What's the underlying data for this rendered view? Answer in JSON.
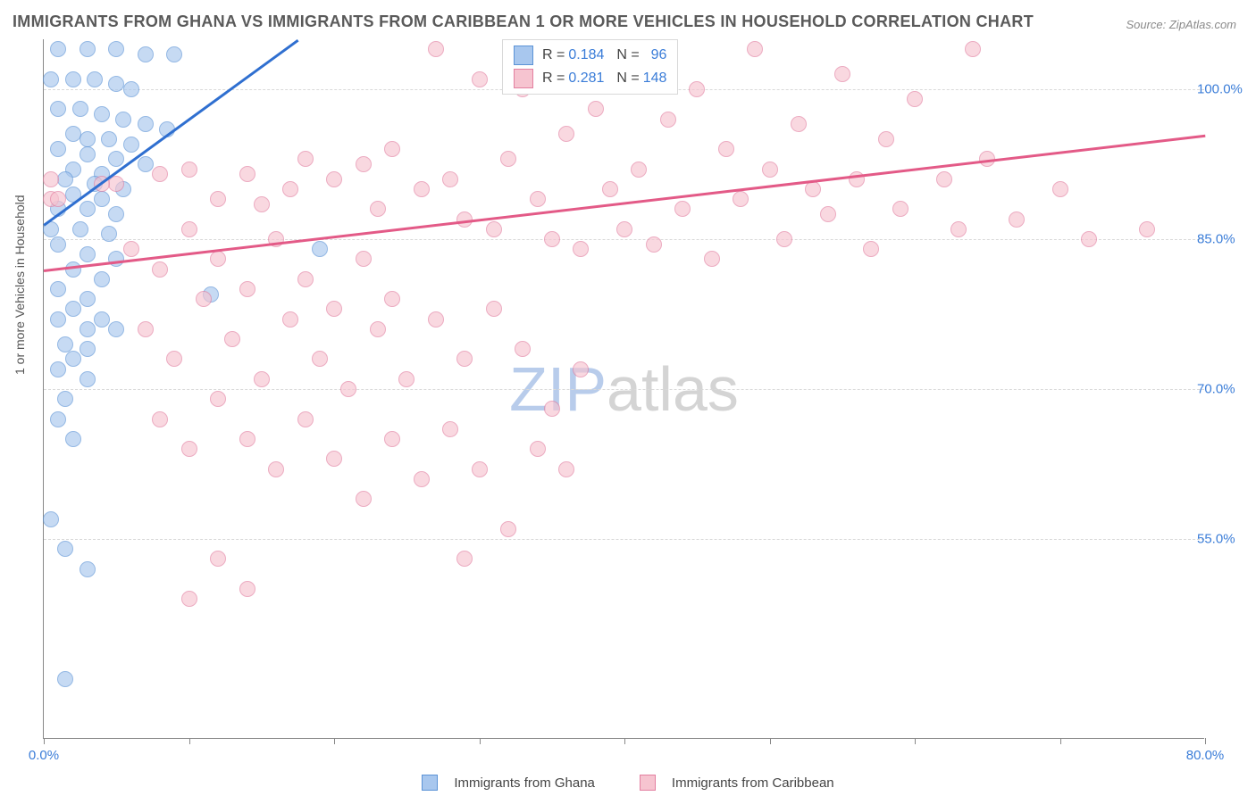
{
  "title": "IMMIGRANTS FROM GHANA VS IMMIGRANTS FROM CARIBBEAN 1 OR MORE VEHICLES IN HOUSEHOLD CORRELATION CHART",
  "source": "Source: ZipAtlas.com",
  "ylabel": "1 or more Vehicles in Household",
  "watermark_a": "ZIP",
  "watermark_b": "atlas",
  "chart": {
    "type": "scatter",
    "background_color": "#ffffff",
    "grid_color": "#d9d9d9",
    "axis_color": "#888888",
    "xlim": [
      0,
      80
    ],
    "ylim": [
      35,
      105
    ],
    "xticks": [
      0,
      10,
      20,
      30,
      40,
      50,
      60,
      70,
      80
    ],
    "yticks": [
      55,
      70,
      85,
      100
    ],
    "xtick_labels": {
      "0": "0.0%",
      "80": "80.0%"
    },
    "ytick_labels": [
      "55.0%",
      "70.0%",
      "85.0%",
      "100.0%"
    ],
    "tick_color": "#3b7dd8",
    "marker_radius": 9,
    "marker_opacity_fill": 0.25,
    "marker_opacity_stroke": 0.65,
    "series": [
      {
        "name": "Immigrants from Ghana",
        "color_fill": "#a8c7ee",
        "color_stroke": "#5b93d6",
        "trend_color": "#2f6fd0",
        "R": "0.184",
        "N": "96",
        "trend": {
          "x1": 0,
          "y1": 86.5,
          "x2": 17.5,
          "y2": 105
        },
        "points": [
          [
            1,
            104
          ],
          [
            3,
            104
          ],
          [
            5,
            104
          ],
          [
            7,
            103.5
          ],
          [
            9,
            103.5
          ],
          [
            0.5,
            101
          ],
          [
            2,
            101
          ],
          [
            3.5,
            101
          ],
          [
            5,
            100.5
          ],
          [
            6,
            100
          ],
          [
            1,
            98
          ],
          [
            2.5,
            98
          ],
          [
            4,
            97.5
          ],
          [
            5.5,
            97
          ],
          [
            7,
            96.5
          ],
          [
            8.5,
            96
          ],
          [
            2,
            95.5
          ],
          [
            3,
            95
          ],
          [
            4.5,
            95
          ],
          [
            6,
            94.5
          ],
          [
            1,
            94
          ],
          [
            3,
            93.5
          ],
          [
            5,
            93
          ],
          [
            7,
            92.5
          ],
          [
            2,
            92
          ],
          [
            4,
            91.5
          ],
          [
            1.5,
            91
          ],
          [
            3.5,
            90.5
          ],
          [
            5.5,
            90
          ],
          [
            2,
            89.5
          ],
          [
            4,
            89
          ],
          [
            1,
            88
          ],
          [
            3,
            88
          ],
          [
            5,
            87.5
          ],
          [
            0.5,
            86
          ],
          [
            2.5,
            86
          ],
          [
            4.5,
            85.5
          ],
          [
            1,
            84.5
          ],
          [
            3,
            83.5
          ],
          [
            19,
            84
          ],
          [
            5,
            83
          ],
          [
            2,
            82
          ],
          [
            4,
            81
          ],
          [
            1,
            80
          ],
          [
            3,
            79
          ],
          [
            11.5,
            79.5
          ],
          [
            2,
            78
          ],
          [
            4,
            77
          ],
          [
            1,
            77
          ],
          [
            3,
            76
          ],
          [
            5,
            76
          ],
          [
            1.5,
            74.5
          ],
          [
            3,
            74
          ],
          [
            2,
            73
          ],
          [
            1,
            72
          ],
          [
            3,
            71
          ],
          [
            1.5,
            69
          ],
          [
            1,
            67
          ],
          [
            2,
            65
          ],
          [
            0.5,
            57
          ],
          [
            1.5,
            54
          ],
          [
            3,
            52
          ],
          [
            1.5,
            41
          ]
        ]
      },
      {
        "name": "Immigrants from Caribbean",
        "color_fill": "#f6c4d0",
        "color_stroke": "#e37fa0",
        "trend_color": "#e35a87",
        "R": "0.281",
        "N": "148",
        "trend": {
          "x1": 0,
          "y1": 82,
          "x2": 80,
          "y2": 95.5
        },
        "points": [
          [
            0.5,
            91
          ],
          [
            0.5,
            89
          ],
          [
            1,
            89
          ],
          [
            5,
            90.5
          ],
          [
            4,
            90.5
          ],
          [
            8,
            91.5
          ],
          [
            10,
            92
          ],
          [
            12,
            89
          ],
          [
            14,
            91.5
          ],
          [
            15,
            88.5
          ],
          [
            17,
            90
          ],
          [
            18,
            93
          ],
          [
            20,
            91
          ],
          [
            22,
            92.5
          ],
          [
            23,
            88
          ],
          [
            24,
            94
          ],
          [
            26,
            90
          ],
          [
            27,
            104
          ],
          [
            28,
            91
          ],
          [
            29,
            87
          ],
          [
            30,
            101
          ],
          [
            31,
            86
          ],
          [
            32,
            93
          ],
          [
            33,
            100
          ],
          [
            34,
            89
          ],
          [
            35,
            85
          ],
          [
            36,
            95.5
          ],
          [
            37,
            84
          ],
          [
            38,
            98
          ],
          [
            39,
            90
          ],
          [
            40,
            86
          ],
          [
            41,
            92
          ],
          [
            42,
            84.5
          ],
          [
            43,
            97
          ],
          [
            44,
            88
          ],
          [
            45,
            100
          ],
          [
            46,
            83
          ],
          [
            47,
            94
          ],
          [
            48,
            89
          ],
          [
            49,
            104
          ],
          [
            50,
            92
          ],
          [
            51,
            85
          ],
          [
            52,
            96.5
          ],
          [
            53,
            90
          ],
          [
            54,
            87.5
          ],
          [
            55,
            101.5
          ],
          [
            56,
            91
          ],
          [
            57,
            84
          ],
          [
            58,
            95
          ],
          [
            59,
            88
          ],
          [
            60,
            99
          ],
          [
            62,
            91
          ],
          [
            63,
            86
          ],
          [
            64,
            104
          ],
          [
            65,
            93
          ],
          [
            67,
            87
          ],
          [
            70,
            90
          ],
          [
            72,
            85
          ],
          [
            76,
            86
          ],
          [
            6,
            84
          ],
          [
            8,
            82
          ],
          [
            10,
            86
          ],
          [
            12,
            83
          ],
          [
            14,
            80
          ],
          [
            16,
            85
          ],
          [
            18,
            81
          ],
          [
            20,
            78
          ],
          [
            22,
            83
          ],
          [
            24,
            79
          ],
          [
            7,
            76
          ],
          [
            9,
            73
          ],
          [
            11,
            79
          ],
          [
            13,
            75
          ],
          [
            15,
            71
          ],
          [
            17,
            77
          ],
          [
            19,
            73
          ],
          [
            21,
            70
          ],
          [
            23,
            76
          ],
          [
            25,
            71
          ],
          [
            27,
            77
          ],
          [
            29,
            73
          ],
          [
            31,
            78
          ],
          [
            33,
            74
          ],
          [
            35,
            68
          ],
          [
            37,
            72
          ],
          [
            8,
            67
          ],
          [
            10,
            64
          ],
          [
            12,
            69
          ],
          [
            14,
            65
          ],
          [
            16,
            62
          ],
          [
            18,
            67
          ],
          [
            20,
            63
          ],
          [
            22,
            59
          ],
          [
            24,
            65
          ],
          [
            26,
            61
          ],
          [
            28,
            66
          ],
          [
            30,
            62
          ],
          [
            32,
            56
          ],
          [
            34,
            64
          ],
          [
            36,
            62
          ],
          [
            12,
            53
          ],
          [
            14,
            50
          ],
          [
            29,
            53
          ],
          [
            10,
            49
          ]
        ]
      }
    ]
  },
  "legend_top": [
    {
      "swatch_fill": "#a8c7ee",
      "swatch_stroke": "#5b93d6",
      "r_label": "R =",
      "r_val": "0.184",
      "n_label": "N =",
      "n_val": "96",
      "n_pad": "  "
    },
    {
      "swatch_fill": "#f6c4d0",
      "swatch_stroke": "#e37fa0",
      "r_label": "R =",
      "r_val": "0.281",
      "n_label": "N =",
      "n_val": "148",
      "n_pad": ""
    }
  ],
  "legend_bottom": [
    {
      "swatch_fill": "#a8c7ee",
      "swatch_stroke": "#5b93d6",
      "label": "Immigrants from Ghana"
    },
    {
      "swatch_fill": "#f6c4d0",
      "swatch_stroke": "#e37fa0",
      "label": "Immigrants from Caribbean"
    }
  ],
  "watermark_colors": {
    "a": "#b8cceb",
    "b": "#d4d4d4"
  }
}
